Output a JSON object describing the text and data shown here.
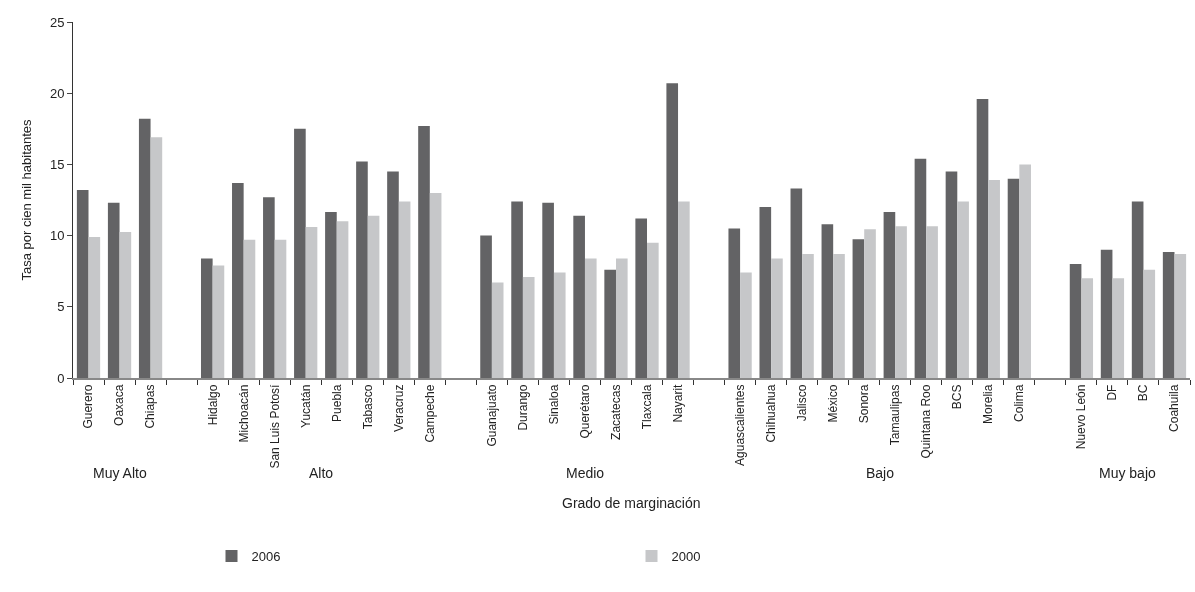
{
  "chart_data": {
    "type": "bar",
    "xlabel": "Grado de marginación",
    "ylabel": "Tasa por cien mil habitantes",
    "categories": [
      "Guerero",
      "Oaxaca",
      "Chiapas",
      null,
      "Hidalgo",
      "Michoacán",
      "San Luis Potosí",
      "Yucatán",
      "Puebla",
      "Tabasco",
      "Veracruz",
      "Campeche",
      null,
      "Guanajuato",
      "Durango",
      "Sinaloa",
      "Querétaro",
      "Zacatecas",
      "Tlaxcala",
      "Nayarit",
      null,
      "Aguascalientes",
      "Chihuahua",
      "Jalisco",
      "México",
      "Sonora",
      "Tamaulipas",
      "Quintana Roo",
      "BCS",
      "Morelia",
      "Colima",
      null,
      "Nuevo León",
      "DF",
      "BC",
      "Coahuila"
    ],
    "series": [
      {
        "name": "2006",
        "color": "#636365",
        "values": [
          13.2,
          12.3,
          18.2,
          null,
          8.4,
          13.7,
          12.7,
          17.5,
          11.65,
          15.2,
          14.5,
          17.7,
          null,
          10.0,
          12.4,
          12.3,
          11.4,
          7.6,
          11.2,
          20.7,
          null,
          10.5,
          12.0,
          13.3,
          10.8,
          9.75,
          11.65,
          15.4,
          14.5,
          19.6,
          14.0,
          null,
          8.0,
          9.0,
          12.4,
          8.85
        ]
      },
      {
        "name": "2000",
        "color": "#c6c7c9",
        "values": [
          9.9,
          10.25,
          16.9,
          null,
          7.9,
          9.7,
          9.7,
          10.6,
          11.0,
          11.4,
          12.4,
          13.0,
          null,
          6.7,
          7.1,
          7.4,
          8.4,
          8.4,
          9.5,
          12.4,
          null,
          7.4,
          8.4,
          8.7,
          8.7,
          10.45,
          10.65,
          10.65,
          12.4,
          13.9,
          15.0,
          null,
          7.0,
          7.0,
          7.6,
          8.7
        ]
      }
    ],
    "annotations": [
      "Muy Alto",
      "Alto",
      "Medio",
      "Bajo",
      "Muy bajo"
    ],
    "ylim": [
      0,
      25
    ],
    "yticks": [
      0,
      5,
      10,
      15,
      20,
      25
    ],
    "legend": "bottom"
  }
}
